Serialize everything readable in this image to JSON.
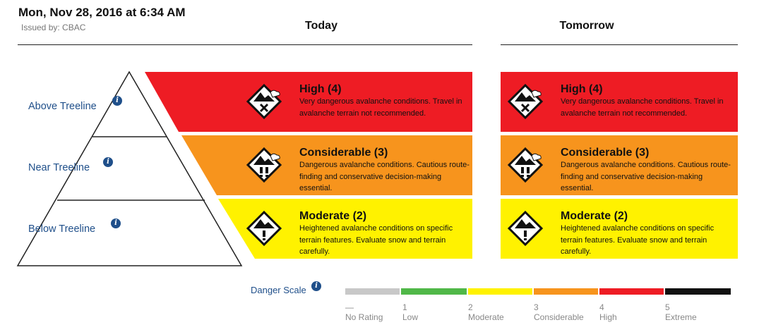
{
  "header": {
    "date": "Mon, Nov 28, 2016 at 6:34 AM",
    "issued_by": "Issued by: CBAC",
    "today_label": "Today",
    "tomorrow_label": "Tomorrow"
  },
  "elevations": [
    {
      "label": "Above Treeline",
      "icon": "info-icon"
    },
    {
      "label": "Near Treeline",
      "icon": "info-icon"
    },
    {
      "label": "Below Treeline",
      "icon": "info-icon"
    }
  ],
  "forecast": {
    "today": [
      {
        "title": "High (4)",
        "description": "Very dangerous avalanche conditions. Travel in avalanche terrain not recommended.",
        "color": "#ee1c24",
        "icon": "high-danger-icon"
      },
      {
        "title": "Considerable (3)",
        "description": "Dangerous avalanche conditions. Cautious route-finding and conservative decision-making essential.",
        "color": "#f7941d",
        "icon": "considerable-danger-icon"
      },
      {
        "title": "Moderate (2)",
        "description": "Heightened avalanche conditions on specific terrain features. Evaluate snow and terrain carefully.",
        "color": "#fff200",
        "icon": "moderate-danger-icon"
      }
    ],
    "tomorrow": [
      {
        "title": "High (4)",
        "description": "Very dangerous avalanche conditions. Travel in avalanche terrain not recommended.",
        "color": "#ee1c24",
        "icon": "high-danger-icon"
      },
      {
        "title": "Considerable (3)",
        "description": "Dangerous avalanche conditions. Cautious route-finding and conservative decision-making essential.",
        "color": "#f7941d",
        "icon": "considerable-danger-icon"
      },
      {
        "title": "Moderate (2)",
        "description": "Heightened avalanche conditions on specific terrain features. Evaluate snow and terrain carefully.",
        "color": "#fff200",
        "icon": "moderate-danger-icon"
      }
    ]
  },
  "danger_scale": {
    "label": "Danger Scale",
    "levels": [
      {
        "num": "—",
        "name": "No Rating",
        "color": "#c8c8c8"
      },
      {
        "num": "1",
        "name": "Low",
        "color": "#50b848"
      },
      {
        "num": "2",
        "name": "Moderate",
        "color": "#fff200"
      },
      {
        "num": "3",
        "name": "Considerable",
        "color": "#f7941d"
      },
      {
        "num": "4",
        "name": "High",
        "color": "#ee1c24"
      },
      {
        "num": "5",
        "name": "Extreme",
        "color": "#111111"
      }
    ]
  }
}
